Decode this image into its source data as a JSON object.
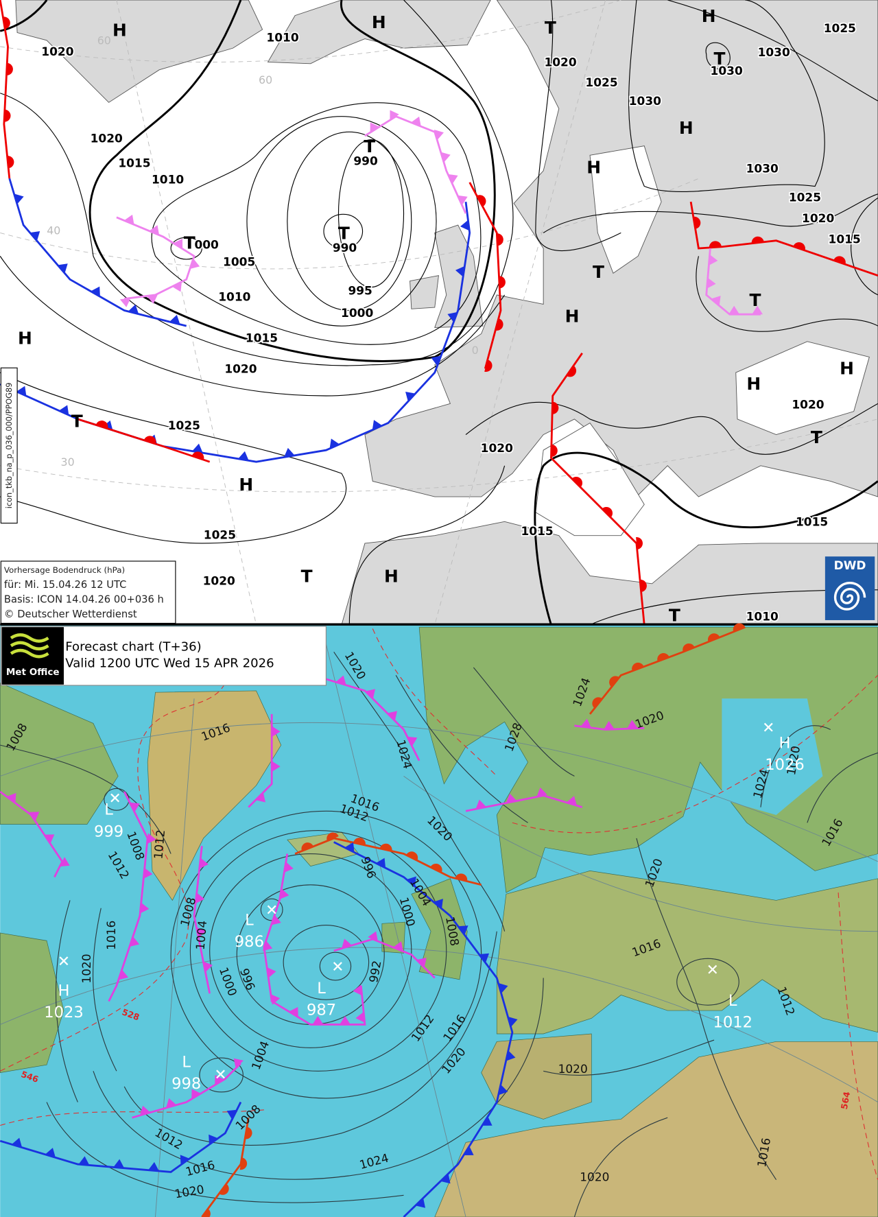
{
  "dwd_chart": {
    "logo": "DWD",
    "side_label": "icon_tkb_na_p_036_000/PPOG89",
    "info": {
      "title": "Vorhersage Bodendruck (hPa)",
      "valid": "für:  Mi. 15.04.26  12 UTC",
      "basis": "Basis: ICON  14.04.26 00+036 h",
      "copyright": "© Deutscher Wetterdienst"
    },
    "isobar_labels": [
      "1020",
      "1010",
      "1020",
      "1025",
      "1030",
      "1030",
      "1030",
      "1025",
      "1020",
      "1015",
      "1010",
      "990",
      "000",
      "1005",
      "990",
      "1010",
      "995",
      "1000",
      "1015",
      "1020",
      "1030",
      "1025",
      "1020",
      "1015",
      "1025",
      "1020",
      "1020",
      "1025",
      "1015",
      "1015",
      "1020",
      "1010"
    ],
    "pressure_centres": [
      "H",
      "H",
      "T",
      "H",
      "T",
      "H",
      "H",
      "T",
      "T",
      "T",
      "T",
      "H",
      "T",
      "H",
      "H",
      "H",
      "T",
      "T",
      "H",
      "T",
      "H",
      "T"
    ],
    "grid_labels": [
      "60",
      "60",
      "40",
      "30",
      "0"
    ]
  },
  "metoffice_chart": {
    "logo": "Met Office",
    "title": "Forecast chart (T+36)",
    "valid": "Valid 1200 UTC Wed 15 APR 2026",
    "isobar_labels": [
      "1020",
      "1024",
      "1028",
      "1016",
      "1008",
      "1016",
      "1012",
      "1020",
      "1008",
      "1012",
      "1012",
      "996",
      "1004",
      "1000",
      "1008",
      "1008",
      "1004",
      "1016",
      "1020",
      "1000",
      "996",
      "992",
      "1012",
      "1016",
      "1020",
      "1004",
      "1008",
      "1012",
      "1016",
      "1020",
      "1024",
      "1020",
      "1020",
      "1016",
      "1020",
      "1016",
      "1012",
      "1016",
      "1024",
      "1020",
      "1020",
      "1024"
    ],
    "centres": [
      {
        "letter": "L",
        "value": "999"
      },
      {
        "letter": "L",
        "value": "986"
      },
      {
        "letter": "L",
        "value": "987"
      },
      {
        "letter": "H",
        "value": "1023"
      },
      {
        "letter": "L",
        "value": "998"
      },
      {
        "letter": "H",
        "value": "1026"
      },
      {
        "letter": "L",
        "value": "1012"
      }
    ],
    "thickness_labels": [
      "528",
      "546",
      "564"
    ]
  }
}
